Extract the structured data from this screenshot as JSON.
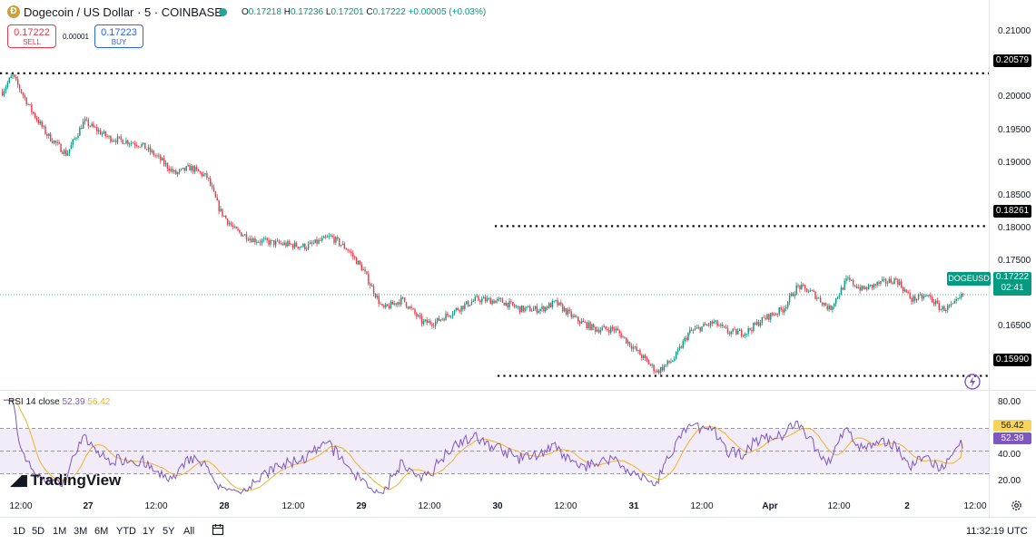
{
  "header": {
    "coin_glyph": "Ð",
    "title": "Dogecoin / US Dollar · 5 · COINBASE",
    "ohlc": [
      {
        "k": "O",
        "v": "0.17218"
      },
      {
        "k": "H",
        "v": "0.17236"
      },
      {
        "k": "L",
        "v": "0.17201"
      },
      {
        "k": "C",
        "v": "0.17222"
      },
      {
        "k": "",
        "v": "+0.00005 (+0.03%)"
      }
    ],
    "sell": {
      "price": "0.17222",
      "label": "SELL"
    },
    "buy": {
      "price": "0.17223",
      "label": "BUY"
    },
    "spread": "0.00001"
  },
  "colors": {
    "up": "#089981",
    "down": "#f23645",
    "rsi": "#7e57c2",
    "rsi_ma": "#f0b429",
    "band": "#ede7f6"
  },
  "price_axis": {
    "labels": [
      "0.21000",
      "0.20000",
      "0.19500",
      "0.19000",
      "0.18500",
      "0.18000",
      "0.17500",
      "0.16500"
    ],
    "level_labels": [
      "0.20579",
      "0.18261",
      "0.15990"
    ]
  },
  "symbol_tag": "DOGEUSD",
  "current": {
    "price": "0.17222",
    "countdown": "02:41"
  },
  "rsi": {
    "title": "RSI 14 close",
    "value": "52.39",
    "ma": "56.42",
    "axis_labels": [
      "80.00",
      "40.00",
      "20.00"
    ]
  },
  "time_axis": [
    "12:00",
    "27",
    "12:00",
    "28",
    "12:00",
    "29",
    "12:00",
    "30",
    "12:00",
    "31",
    "12:00",
    "Apr",
    "12:00",
    "2",
    "12:00"
  ],
  "logo": "TradingView",
  "ranges": [
    "1D",
    "5D",
    "1M",
    "3M",
    "6M",
    "YTD",
    "1Y",
    "5Y",
    "All"
  ],
  "clock": "11:32:19 UTC",
  "icons": {
    "calendar": "calendar-icon",
    "settings": "gear-icon",
    "alert": "alert-icon"
  },
  "chart_data": {
    "type": "candlestick",
    "title": "Dogecoin / US Dollar · 5 · COINBASE",
    "x_ticks": [
      "12:00",
      "27",
      "12:00",
      "28",
      "12:00",
      "29",
      "12:00",
      "30",
      "12:00",
      "31",
      "12:00",
      "Apr",
      "12:00",
      "2",
      "12:00"
    ],
    "ylim": [
      0.1575,
      0.2125
    ],
    "levels": [
      0.20579,
      0.18261,
      0.1599
    ],
    "last_price": 0.17222,
    "close_path": [
      [
        0,
        0.203
      ],
      [
        0.4,
        0.2055
      ],
      [
        1.2,
        0.2
      ],
      [
        1.8,
        0.1965
      ],
      [
        2.6,
        0.1935
      ],
      [
        3.3,
        0.1985
      ],
      [
        4.3,
        0.196
      ],
      [
        5.0,
        0.1955
      ],
      [
        5.6,
        0.195
      ],
      [
        6.3,
        0.193
      ],
      [
        7.0,
        0.1905
      ],
      [
        7.6,
        0.1915
      ],
      [
        8.3,
        0.19
      ],
      [
        8.8,
        0.185
      ],
      [
        9.4,
        0.182
      ],
      [
        10.2,
        0.1805
      ],
      [
        11.1,
        0.18
      ],
      [
        12.3,
        0.1795
      ],
      [
        13.3,
        0.181
      ],
      [
        14.0,
        0.179
      ],
      [
        14.6,
        0.176
      ],
      [
        15.4,
        0.17
      ],
      [
        16.2,
        0.1715
      ],
      [
        17.0,
        0.168
      ],
      [
        17.5,
        0.168
      ],
      [
        18.4,
        0.17
      ],
      [
        19.2,
        0.1715
      ],
      [
        20.2,
        0.1712
      ],
      [
        21.0,
        0.17
      ],
      [
        21.8,
        0.17
      ],
      [
        22.4,
        0.171
      ],
      [
        23.2,
        0.1685
      ],
      [
        24.0,
        0.167
      ],
      [
        24.8,
        0.167
      ],
      [
        25.6,
        0.164
      ],
      [
        26.5,
        0.1605
      ],
      [
        27.2,
        0.1625
      ],
      [
        27.8,
        0.1665
      ],
      [
        28.8,
        0.168
      ],
      [
        29.4,
        0.1665
      ],
      [
        30.1,
        0.1665
      ],
      [
        30.8,
        0.1685
      ],
      [
        31.6,
        0.17
      ],
      [
        32.2,
        0.1735
      ],
      [
        32.8,
        0.1725
      ],
      [
        33.5,
        0.17
      ],
      [
        34.2,
        0.1745
      ],
      [
        34.8,
        0.173
      ],
      [
        35.6,
        0.174
      ],
      [
        36.2,
        0.1745
      ],
      [
        36.8,
        0.1715
      ],
      [
        37.5,
        0.172
      ],
      [
        38.0,
        0.17
      ],
      [
        38.5,
        0.1705
      ],
      [
        38.9,
        0.1722
      ]
    ],
    "time_span": [
      0,
      40
    ],
    "rsi": {
      "ylim": [
        0,
        100
      ],
      "overbought": 70,
      "midline": 50,
      "oversold": 30,
      "last": 52.39,
      "last_ma": 56.42
    }
  }
}
